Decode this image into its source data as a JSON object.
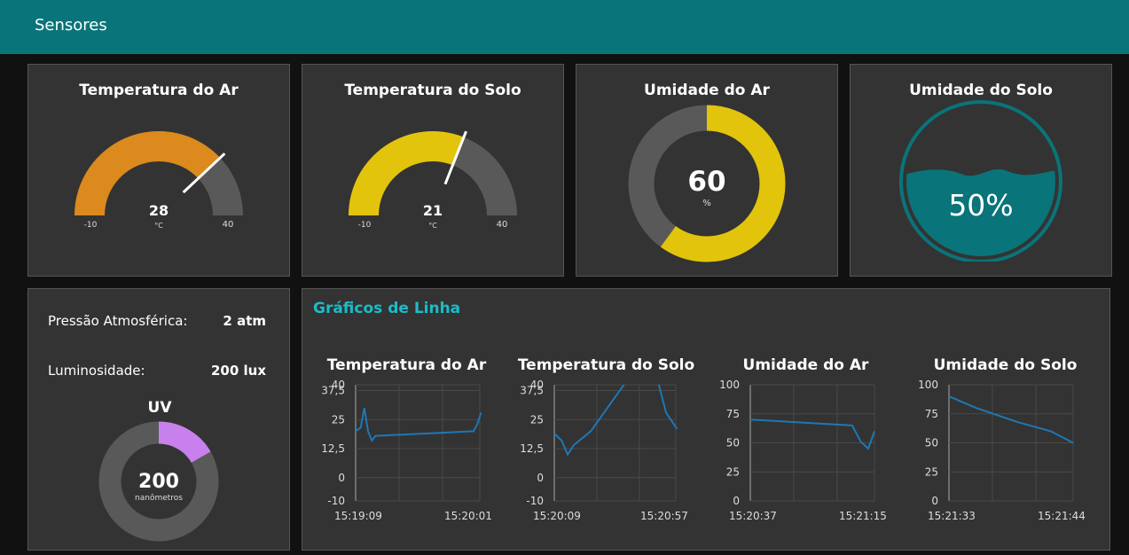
{
  "header": {
    "title": "Sensores"
  },
  "gauges": [
    {
      "title": "Temperatura do Ar",
      "value": 28,
      "display": "28",
      "unit": "°C",
      "min": -10,
      "max": 40,
      "min_label": "-10",
      "max_label": "40",
      "color": "#dc891e",
      "track_color": "#595959"
    },
    {
      "title": "Temperatura do Solo",
      "value": 21,
      "display": "21",
      "unit": "°C",
      "min": -10,
      "max": 40,
      "min_label": "-10",
      "max_label": "40",
      "color": "#e2c40c",
      "track_color": "#595959"
    }
  ],
  "umidade_ar": {
    "title": "Umidade do Ar",
    "value": 60,
    "display": "60",
    "unit": "%",
    "max": 100,
    "color": "#e2c40c",
    "track_color": "#595959"
  },
  "umidade_solo": {
    "title": "Umidade do Solo",
    "value": 50,
    "display": "50%",
    "color": "#097479"
  },
  "info": {
    "pressao_label": "Pressão Atmosférica:",
    "pressao_value": "2 atm",
    "lum_label": "Luminosidade:",
    "lum_value": "200 lux"
  },
  "uv": {
    "title": "UV",
    "value": 200,
    "display": "200",
    "unit": "nanômetros",
    "max": 1200,
    "color": "#c880ec",
    "track_color": "#595959"
  },
  "line_group": {
    "title": "Gráficos de Linha"
  },
  "chart_data": [
    {
      "type": "line",
      "title": "Temperatura do Ar",
      "ylim": [
        -10,
        40
      ],
      "yticks": [
        "-10",
        "0",
        "12,5",
        "25",
        "37,5",
        "40"
      ],
      "ytick_values": [
        -10,
        0,
        12.5,
        25,
        37.5,
        40
      ],
      "xticks": [
        "15:19:09",
        "15:20:01"
      ],
      "grid": true,
      "line_color": "#1f77b4",
      "series": [
        {
          "values": [
            [
              0,
              20
            ],
            [
              0.04,
              21.5
            ],
            [
              0.07,
              30
            ],
            [
              0.1,
              20
            ],
            [
              0.13,
              16
            ],
            [
              0.16,
              18
            ],
            [
              0.95,
              20
            ],
            [
              0.98,
              23
            ],
            [
              1.01,
              28
            ]
          ]
        }
      ]
    },
    {
      "type": "line",
      "title": "Temperatura do Solo",
      "ylim": [
        -10,
        40
      ],
      "yticks": [
        "-10",
        "0",
        "12,5",
        "25",
        "37,5",
        "40"
      ],
      "ytick_values": [
        -10,
        0,
        12.5,
        25,
        37.5,
        40
      ],
      "xticks": [
        "15:20:09",
        "15:20:57"
      ],
      "grid": true,
      "line_color": "#1f77b4",
      "series": [
        {
          "values": [
            [
              0,
              19
            ],
            [
              0.06,
              16
            ],
            [
              0.11,
              10
            ],
            [
              0.16,
              14
            ],
            [
              0.3,
              20
            ],
            [
              0.6,
              42
            ],
            [
              0.85,
              42
            ],
            [
              0.92,
              28
            ],
            [
              1.01,
              21
            ]
          ]
        }
      ]
    },
    {
      "type": "line",
      "title": "Umidade do Ar",
      "ylim": [
        0,
        100
      ],
      "yticks": [
        "0",
        "25",
        "50",
        "75",
        "100"
      ],
      "ytick_values": [
        0,
        25,
        50,
        75,
        100
      ],
      "xticks": [
        "15:20:37",
        "15:21:15"
      ],
      "grid": true,
      "line_color": "#1f77b4",
      "series": [
        {
          "values": [
            [
              0,
              70
            ],
            [
              0.82,
              65
            ],
            [
              0.89,
              51
            ],
            [
              0.95,
              45
            ],
            [
              1.0,
              60
            ]
          ]
        }
      ]
    },
    {
      "type": "line",
      "title": "Umidade do Solo",
      "ylim": [
        0,
        100
      ],
      "yticks": [
        "0",
        "25",
        "50",
        "75",
        "100"
      ],
      "ytick_values": [
        0,
        25,
        50,
        75,
        100
      ],
      "xticks": [
        "15:21:33",
        "15:21:44"
      ],
      "grid": true,
      "line_color": "#1f77b4",
      "series": [
        {
          "values": [
            [
              0,
              90
            ],
            [
              0.22,
              80
            ],
            [
              0.55,
              68
            ],
            [
              0.82,
              60
            ],
            [
              1.0,
              50
            ]
          ]
        }
      ]
    }
  ]
}
